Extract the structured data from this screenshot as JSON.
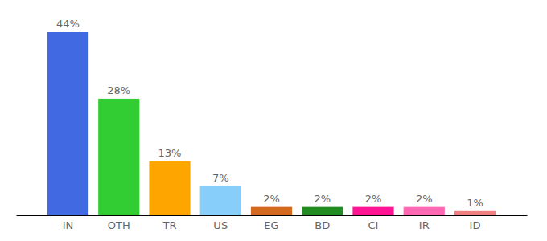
{
  "chart_data": {
    "type": "bar",
    "categories": [
      "IN",
      "OTH",
      "TR",
      "US",
      "EG",
      "BD",
      "CI",
      "IR",
      "ID"
    ],
    "values": [
      44,
      28,
      13,
      7,
      2,
      2,
      2,
      2,
      1
    ],
    "value_labels": [
      "44%",
      "28%",
      "13%",
      "7%",
      "2%",
      "2%",
      "2%",
      "2%",
      "1%"
    ],
    "colors": [
      "#4169e1",
      "#32cd32",
      "#ffa500",
      "#87cefa",
      "#d2691e",
      "#228b22",
      "#ff1493",
      "#ff69b4",
      "#f08080"
    ],
    "ylim": [
      0,
      44
    ],
    "data_labels": true,
    "tick_labels": "x"
  }
}
